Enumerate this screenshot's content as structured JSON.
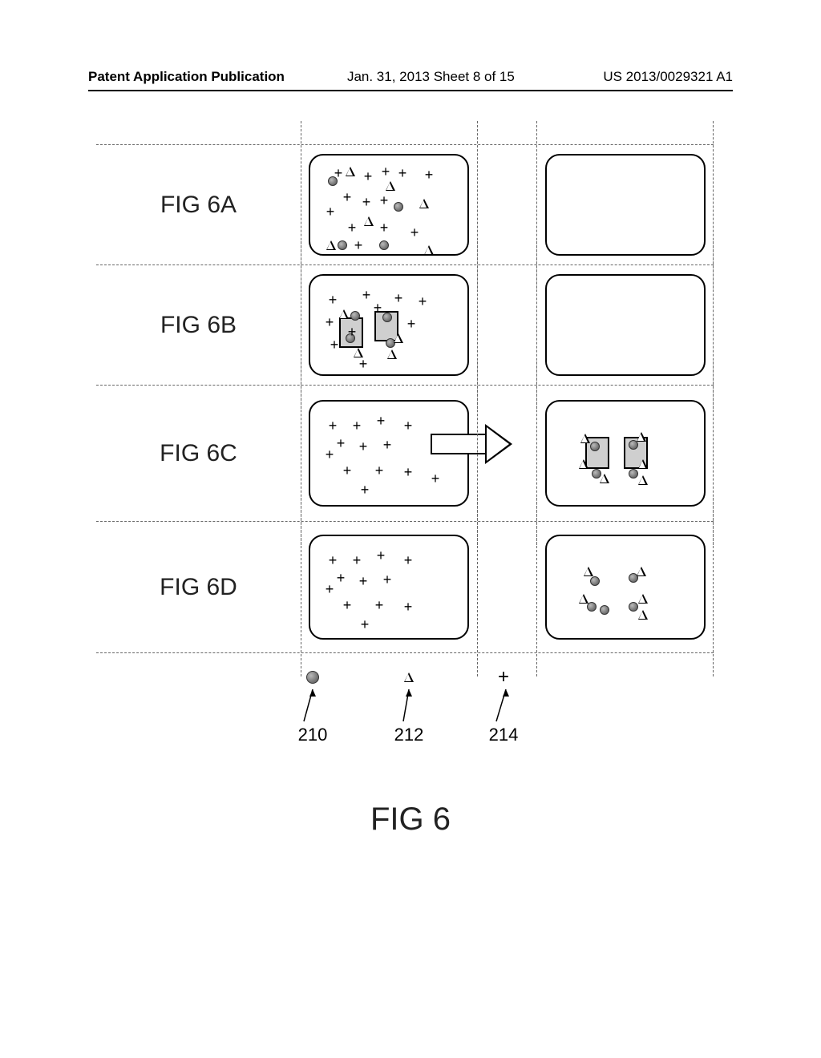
{
  "header": {
    "left": "Patent Application Publication",
    "middle": "Jan. 31, 2013  Sheet 8 of 15",
    "right": "US 2013/0029321 A1"
  },
  "figure_title": "FIG 6",
  "rows": [
    {
      "label": "FIG 6A"
    },
    {
      "label": "FIG 6B"
    },
    {
      "label": "FIG 6C"
    },
    {
      "label": "FIG 6D"
    }
  ],
  "legend": {
    "items": [
      {
        "symbol": "circle",
        "ref": "210"
      },
      {
        "symbol": "triangle",
        "ref": "212"
      },
      {
        "symbol": "plus",
        "ref": "214"
      }
    ]
  },
  "panel_6A_left": {
    "circles": [
      [
        28,
        32
      ],
      [
        110,
        64
      ],
      [
        40,
        112
      ],
      [
        92,
        112
      ]
    ],
    "triangles": [
      [
        50,
        20
      ],
      [
        100,
        38
      ],
      [
        142,
        60
      ],
      [
        73,
        82
      ],
      [
        26,
        112
      ],
      [
        148,
        118
      ]
    ],
    "plus": [
      [
        35,
        22
      ],
      [
        72,
        26
      ],
      [
        94,
        20
      ],
      [
        115,
        22
      ],
      [
        148,
        24
      ],
      [
        46,
        52
      ],
      [
        70,
        58
      ],
      [
        92,
        56
      ],
      [
        25,
        70
      ],
      [
        52,
        90
      ],
      [
        92,
        90
      ],
      [
        130,
        96
      ],
      [
        60,
        112
      ]
    ]
  },
  "panel_6B_left": {
    "boxes": true,
    "circles": [
      [
        56,
        50
      ],
      [
        96,
        52
      ],
      [
        50,
        78
      ],
      [
        100,
        84
      ]
    ],
    "triangles": [
      [
        42,
        48
      ],
      [
        110,
        78
      ],
      [
        60,
        96
      ],
      [
        102,
        98
      ]
    ],
    "plus": [
      [
        28,
        30
      ],
      [
        70,
        24
      ],
      [
        110,
        28
      ],
      [
        140,
        32
      ],
      [
        24,
        58
      ],
      [
        30,
        86
      ],
      [
        66,
        110
      ],
      [
        126,
        60
      ],
      [
        52,
        70
      ],
      [
        84,
        40
      ]
    ]
  },
  "panel_6C_left": {
    "plus": [
      [
        28,
        30
      ],
      [
        58,
        30
      ],
      [
        88,
        24
      ],
      [
        122,
        30
      ],
      [
        38,
        52
      ],
      [
        66,
        56
      ],
      [
        96,
        54
      ],
      [
        24,
        66
      ],
      [
        46,
        86
      ],
      [
        86,
        86
      ],
      [
        122,
        88
      ],
      [
        68,
        110
      ],
      [
        156,
        96
      ]
    ]
  },
  "panel_6C_right": {
    "boxes": true,
    "circles": [
      [
        60,
        56
      ],
      [
        108,
        54
      ],
      [
        62,
        90
      ],
      [
        108,
        90
      ]
    ],
    "triangles": [
      [
        48,
        46
      ],
      [
        118,
        44
      ],
      [
        46,
        78
      ],
      [
        72,
        96
      ],
      [
        120,
        78
      ],
      [
        120,
        98
      ]
    ]
  },
  "panel_6D_left": {
    "plus": [
      [
        28,
        30
      ],
      [
        58,
        30
      ],
      [
        88,
        24
      ],
      [
        122,
        30
      ],
      [
        38,
        52
      ],
      [
        66,
        56
      ],
      [
        96,
        54
      ],
      [
        24,
        66
      ],
      [
        46,
        86
      ],
      [
        86,
        86
      ],
      [
        122,
        88
      ],
      [
        68,
        110
      ]
    ]
  },
  "panel_6D_right": {
    "circles": [
      [
        60,
        56
      ],
      [
        108,
        52
      ],
      [
        56,
        88
      ],
      [
        72,
        92
      ],
      [
        108,
        88
      ]
    ],
    "triangles": [
      [
        52,
        44
      ],
      [
        118,
        44
      ],
      [
        46,
        78
      ],
      [
        120,
        78
      ],
      [
        120,
        98
      ]
    ]
  },
  "colors": {
    "ink": "#000000",
    "dash": "#666666",
    "fill_box": "#cfcfcf"
  }
}
